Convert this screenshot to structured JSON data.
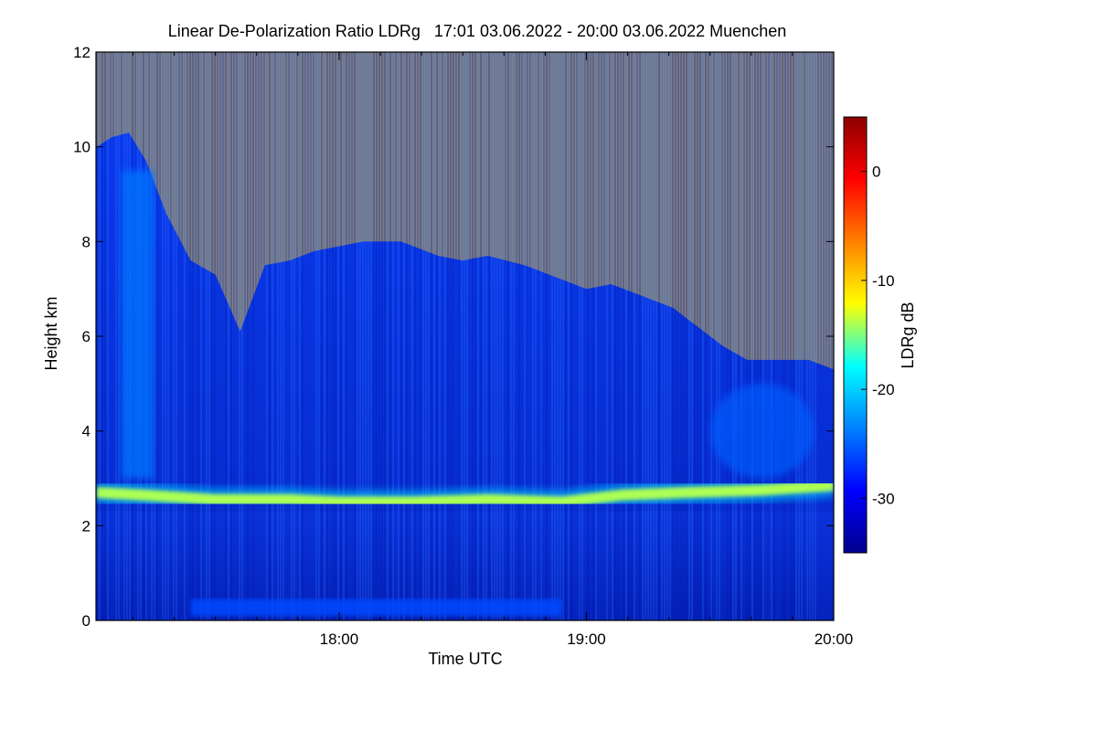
{
  "chart_data": {
    "type": "heatmap",
    "title": "Linear De-Polarization Ratio LDRg   17:01 03.06.2022 - 20:00 03.06.2022 Muenchen",
    "xlabel": "Time UTC",
    "ylabel": "Height km",
    "colorbar_label": "LDRg dB",
    "xlim_hours": [
      17.017,
      20.0
    ],
    "ylim": [
      0,
      12
    ],
    "x_ticks": [
      {
        "value": 18.0,
        "label": "18:00"
      },
      {
        "value": 19.0,
        "label": "19:00"
      },
      {
        "value": 20.0,
        "label": "20:00"
      }
    ],
    "y_ticks": [
      {
        "value": 0,
        "label": "0"
      },
      {
        "value": 2,
        "label": "2"
      },
      {
        "value": 4,
        "label": "4"
      },
      {
        "value": 6,
        "label": "6"
      },
      {
        "value": 8,
        "label": "8"
      },
      {
        "value": 10,
        "label": "10"
      },
      {
        "value": 12,
        "label": "12"
      }
    ],
    "colorbar_range": [
      -35,
      5
    ],
    "colorbar_ticks": [
      {
        "value": 0,
        "label": "0"
      },
      {
        "value": -10,
        "label": "-10"
      },
      {
        "value": -20,
        "label": "-20"
      },
      {
        "value": -30,
        "label": "-30"
      }
    ],
    "no_data_color": "#808080",
    "colormap": [
      "#00008c",
      "#0000ff",
      "#0080ff",
      "#00ffff",
      "#ffff00",
      "#ff8000",
      "#ff0000",
      "#8c0000"
    ],
    "signal_top_km": [
      {
        "t": 17.02,
        "h": 10.0
      },
      {
        "t": 17.08,
        "h": 10.2
      },
      {
        "t": 17.15,
        "h": 10.3
      },
      {
        "t": 17.22,
        "h": 9.7
      },
      {
        "t": 17.3,
        "h": 8.6
      },
      {
        "t": 17.4,
        "h": 7.6
      },
      {
        "t": 17.5,
        "h": 7.3
      },
      {
        "t": 17.6,
        "h": 6.1
      },
      {
        "t": 17.7,
        "h": 7.5
      },
      {
        "t": 17.8,
        "h": 7.6
      },
      {
        "t": 17.9,
        "h": 7.8
      },
      {
        "t": 18.0,
        "h": 7.9
      },
      {
        "t": 18.1,
        "h": 8.0
      },
      {
        "t": 18.25,
        "h": 8.0
      },
      {
        "t": 18.4,
        "h": 7.7
      },
      {
        "t": 18.5,
        "h": 7.6
      },
      {
        "t": 18.6,
        "h": 7.7
      },
      {
        "t": 18.75,
        "h": 7.5
      },
      {
        "t": 18.9,
        "h": 7.2
      },
      {
        "t": 19.0,
        "h": 7.0
      },
      {
        "t": 19.1,
        "h": 7.1
      },
      {
        "t": 19.2,
        "h": 6.9
      },
      {
        "t": 19.35,
        "h": 6.6
      },
      {
        "t": 19.45,
        "h": 6.2
      },
      {
        "t": 19.55,
        "h": 5.8
      },
      {
        "t": 19.65,
        "h": 5.5
      },
      {
        "t": 19.8,
        "h": 5.5
      },
      {
        "t": 19.9,
        "h": 5.5
      },
      {
        "t": 20.0,
        "h": 5.3
      }
    ],
    "melting_layer": {
      "height_km": [
        {
          "t": 17.02,
          "h": 2.7
        },
        {
          "t": 17.2,
          "h": 2.65
        },
        {
          "t": 17.5,
          "h": 2.55
        },
        {
          "t": 17.8,
          "h": 2.55
        },
        {
          "t": 18.0,
          "h": 2.5
        },
        {
          "t": 18.3,
          "h": 2.5
        },
        {
          "t": 18.6,
          "h": 2.55
        },
        {
          "t": 18.9,
          "h": 2.5
        },
        {
          "t": 19.15,
          "h": 2.65
        },
        {
          "t": 19.4,
          "h": 2.7
        },
        {
          "t": 19.7,
          "h": 2.75
        },
        {
          "t": 20.0,
          "h": 2.85
        }
      ],
      "ldr_db": -14
    },
    "features": [
      {
        "name": "fall streak",
        "t_start": 17.12,
        "t_end": 17.25,
        "h_bottom": 3.0,
        "h_top": 9.5,
        "ldr_db": -24
      },
      {
        "name": "ice virga",
        "t_start": 19.5,
        "t_end": 19.92,
        "h_bottom": 3.0,
        "h_top": 5.0,
        "ldr_db": -25
      },
      {
        "name": "near-surface layer",
        "t_start": 17.4,
        "t_end": 18.9,
        "h_bottom": 0.1,
        "h_top": 0.45,
        "ldr_db": -26
      }
    ],
    "background_ldr_db": {
      "above_melting_layer": -28,
      "below_melting_layer": -32
    }
  }
}
